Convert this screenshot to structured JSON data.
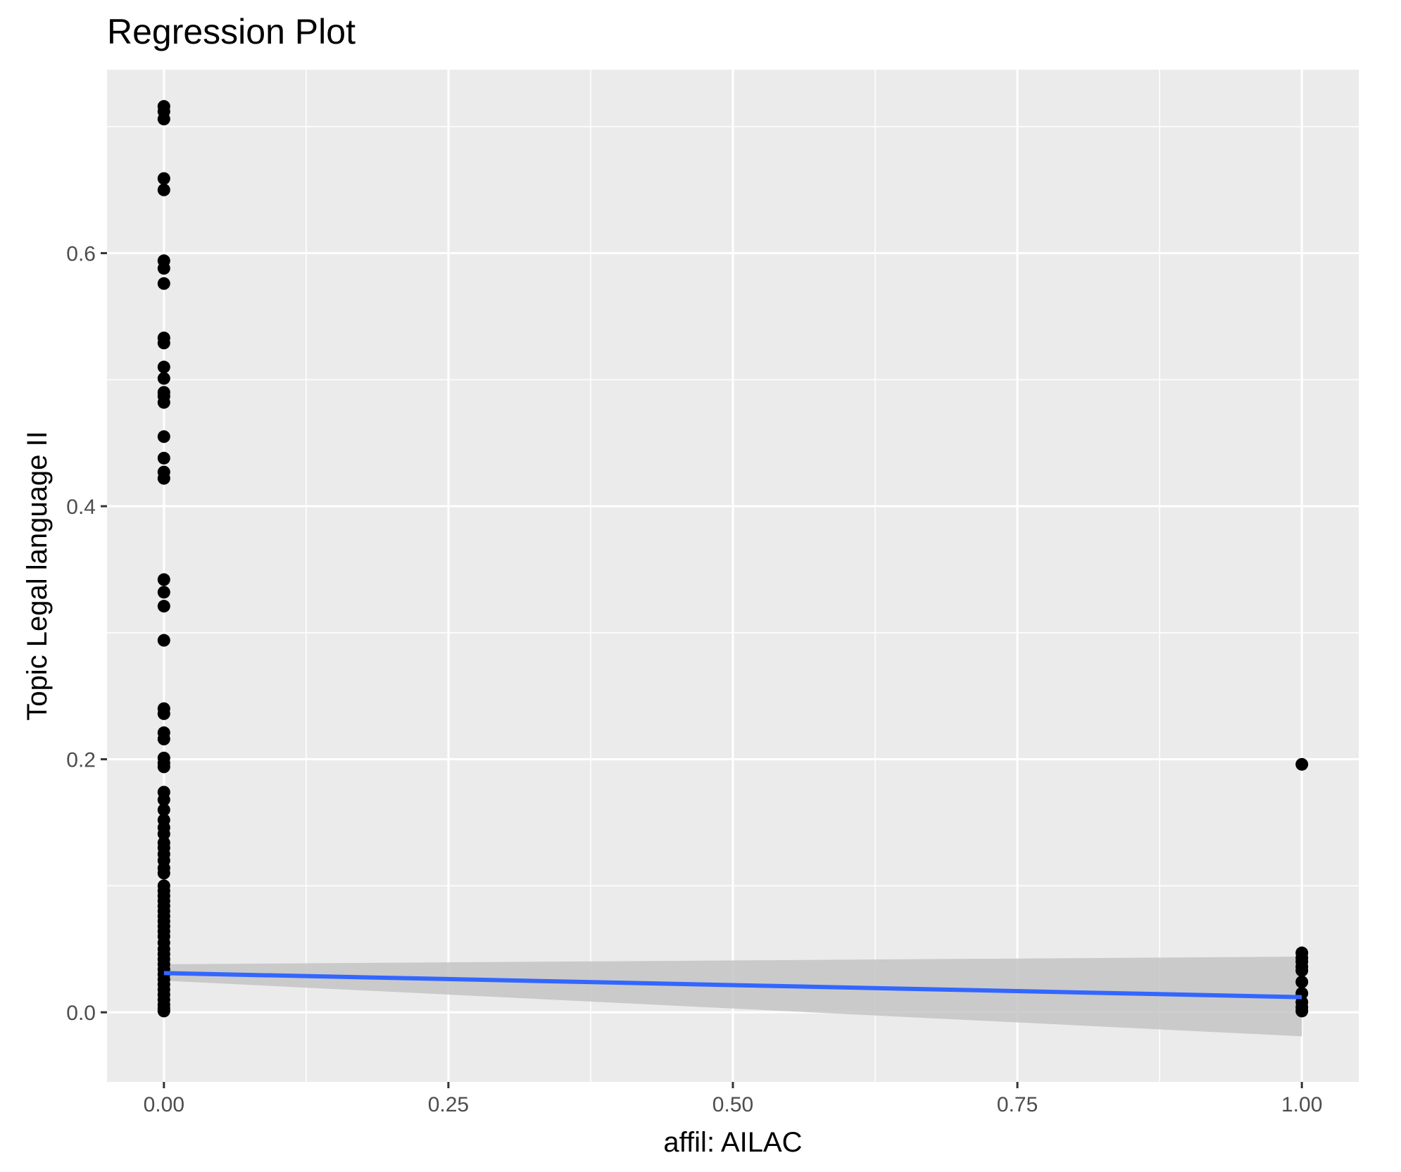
{
  "chart_data": {
    "type": "scatter",
    "title": "Regression Plot",
    "xlabel": "affil: AILAC",
    "ylabel": "Topic Legal language II",
    "xlim": [
      -0.05,
      1.05
    ],
    "ylim": [
      -0.055,
      0.745
    ],
    "x_ticks": [
      0.0,
      0.25,
      0.5,
      0.75,
      1.0
    ],
    "x_tick_labels": [
      "0.00",
      "0.25",
      "0.50",
      "0.75",
      "1.00"
    ],
    "y_ticks": [
      0.0,
      0.2,
      0.4,
      0.6
    ],
    "y_tick_labels": [
      "0.0",
      "0.2",
      "0.4",
      "0.6"
    ],
    "grid": true,
    "legend": "none",
    "colors": {
      "panel": "#ebebeb",
      "grid": "#ffffff",
      "points": "#000000",
      "line": "#3366ff",
      "ribbon": "#c4c4c4"
    },
    "points": {
      "x0": [
        0.716,
        0.712,
        0.706,
        0.659,
        0.65,
        0.594,
        0.588,
        0.576,
        0.533,
        0.529,
        0.51,
        0.501,
        0.49,
        0.487,
        0.482,
        0.455,
        0.438,
        0.427,
        0.422,
        0.342,
        0.332,
        0.321,
        0.294,
        0.24,
        0.236,
        0.221,
        0.216,
        0.201,
        0.197,
        0.194,
        0.174,
        0.168,
        0.16,
        0.152,
        0.146,
        0.141,
        0.134,
        0.13,
        0.125,
        0.12,
        0.114,
        0.11,
        0.1,
        0.096,
        0.092,
        0.088,
        0.084,
        0.08,
        0.076,
        0.072,
        0.068,
        0.064,
        0.06,
        0.055,
        0.05,
        0.046,
        0.042,
        0.038,
        0.034,
        0.03,
        0.026,
        0.022,
        0.018,
        0.014,
        0.01,
        0.006,
        0.003,
        0.001
      ],
      "x1": [
        0.196,
        0.047,
        0.043,
        0.04,
        0.036,
        0.033,
        0.024,
        0.015,
        0.008,
        0.004,
        0.001
      ]
    },
    "regression": {
      "x": [
        0.0,
        1.0
      ],
      "y": [
        0.031,
        0.012
      ],
      "ribbon_low": [
        0.025,
        -0.019
      ],
      "ribbon_high": [
        0.038,
        0.044
      ]
    }
  }
}
